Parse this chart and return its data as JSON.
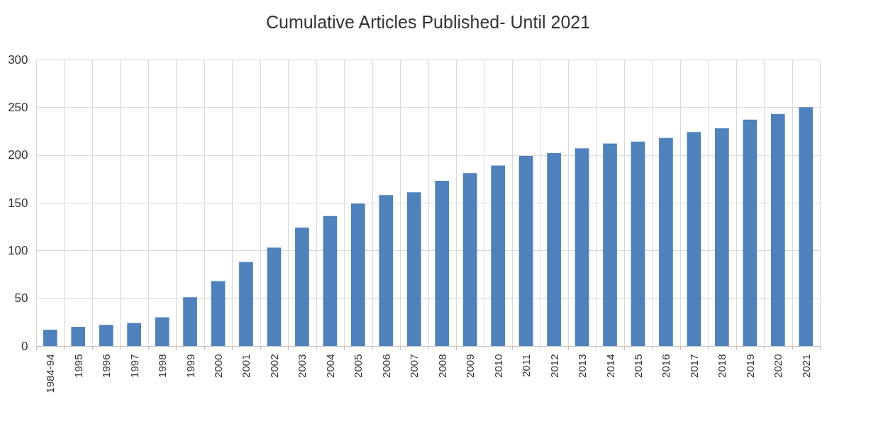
{
  "chart_data": {
    "type": "bar",
    "title": "Cumulative Articles Published- Until 2021",
    "categories": [
      "1984-94",
      "1995",
      "1996",
      "1997",
      "1998",
      "1999",
      "2000",
      "2001",
      "2002",
      "2003",
      "2004",
      "2005",
      "2006",
      "2007",
      "2008",
      "2009",
      "2010",
      "2011",
      "2012",
      "2013",
      "2014",
      "2015",
      "2016",
      "2017",
      "2018",
      "2019",
      "2020",
      "2021"
    ],
    "values": [
      17,
      20,
      22,
      24,
      30,
      51,
      68,
      88,
      103,
      124,
      136,
      149,
      158,
      161,
      173,
      181,
      189,
      199,
      202,
      207,
      212,
      214,
      218,
      224,
      228,
      237,
      243,
      250
    ],
    "color": "#4f81bd",
    "ylim": [
      0,
      300
    ],
    "yticks": [
      0,
      50,
      100,
      150,
      200,
      250,
      300
    ],
    "grid": true
  }
}
